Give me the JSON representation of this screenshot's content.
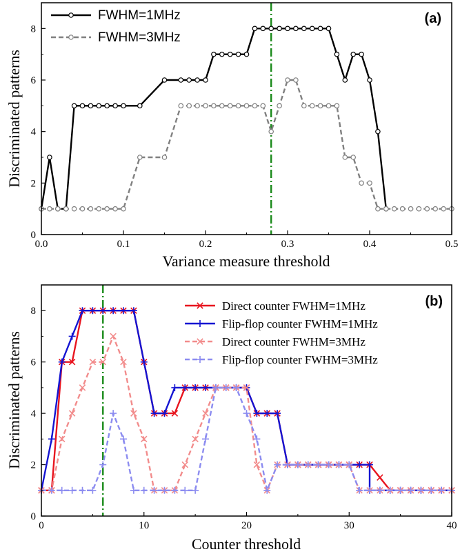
{
  "chart_data": [
    {
      "type": "line",
      "panel_label": "(a)",
      "xlabel": "Variance measure threshold",
      "ylabel": "Discriminated patterns",
      "xlim": [
        0,
        0.5
      ],
      "ylim": [
        0,
        9
      ],
      "xticks": [
        0,
        0.1,
        0.2,
        0.3,
        0.4,
        0.5
      ],
      "xtick_labels": [
        "0.0",
        "0.1",
        "0.2",
        "0.3",
        "0.4",
        "0.5"
      ],
      "yticks": [
        0,
        2,
        4,
        6,
        8
      ],
      "ytick_labels": [
        "0",
        "2",
        "4",
        "6",
        "8"
      ],
      "legend_position": "top-left",
      "vline": {
        "x": 0.28,
        "color": "#1a8a1a",
        "style": "dash-dot"
      },
      "series": [
        {
          "name": "FWHM=1MHz",
          "color": "#000000",
          "dashed": false,
          "marker": "open-circle",
          "x": [
            0,
            0.01,
            0.02,
            0.03,
            0.04,
            0.05,
            0.06,
            0.07,
            0.08,
            0.09,
            0.1,
            0.12,
            0.15,
            0.17,
            0.18,
            0.19,
            0.2,
            0.21,
            0.22,
            0.23,
            0.24,
            0.25,
            0.26,
            0.27,
            0.28,
            0.29,
            0.3,
            0.31,
            0.32,
            0.33,
            0.34,
            0.35,
            0.36,
            0.37,
            0.38,
            0.39,
            0.4,
            0.41,
            0.42
          ],
          "y": [
            1,
            3,
            1,
            1,
            5,
            5,
            5,
            5,
            5,
            5,
            5,
            5,
            6,
            6,
            6,
            6,
            6,
            7,
            7,
            7,
            7,
            7,
            8,
            8,
            8,
            8,
            8,
            8,
            8,
            8,
            8,
            8,
            7,
            6,
            7,
            7,
            6,
            4,
            1
          ]
        },
        {
          "name": "FWHM=3MHz",
          "color": "#808080",
          "dashed": true,
          "marker": "open-circle",
          "x": [
            0,
            0.01,
            0.02,
            0.03,
            0.04,
            0.05,
            0.06,
            0.07,
            0.08,
            0.09,
            0.1,
            0.12,
            0.15,
            0.17,
            0.18,
            0.19,
            0.2,
            0.21,
            0.22,
            0.23,
            0.24,
            0.25,
            0.26,
            0.27,
            0.28,
            0.29,
            0.3,
            0.31,
            0.32,
            0.33,
            0.34,
            0.35,
            0.36,
            0.37,
            0.38,
            0.39,
            0.4,
            0.41,
            0.42,
            0.43,
            0.44,
            0.45,
            0.46,
            0.47,
            0.48,
            0.49,
            0.5
          ],
          "y": [
            1,
            1,
            1,
            1,
            1,
            1,
            1,
            1,
            1,
            1,
            1,
            3,
            3,
            5,
            5,
            5,
            5,
            5,
            5,
            5,
            5,
            5,
            5,
            5,
            4,
            5,
            6,
            6,
            5,
            5,
            5,
            5,
            5,
            3,
            3,
            2,
            2,
            1,
            1,
            1,
            1,
            1,
            1,
            1,
            1,
            1,
            1
          ]
        }
      ]
    },
    {
      "type": "line",
      "panel_label": "(b)",
      "xlabel": "Counter threshold",
      "ylabel": "Discriminated patterns",
      "xlim": [
        0,
        40
      ],
      "ylim": [
        0,
        9
      ],
      "xticks": [
        0,
        10,
        20,
        30,
        40
      ],
      "xtick_labels": [
        "0",
        "10",
        "20",
        "30",
        "40"
      ],
      "yticks": [
        0,
        2,
        4,
        6,
        8
      ],
      "ytick_labels": [
        "0",
        "2",
        "4",
        "6",
        "8"
      ],
      "legend_position": "top-right",
      "vline": {
        "x": 6,
        "color": "#1a8a1a",
        "style": "dash-dot"
      },
      "series": [
        {
          "name": "Direct counter FWHM=1MHz",
          "color": "#e8141e",
          "dashed": false,
          "marker": "x",
          "x": [
            0,
            1,
            2,
            3,
            4,
            5,
            6,
            7,
            8,
            9,
            10,
            11,
            12,
            13,
            14,
            15,
            16,
            17,
            18,
            19,
            20,
            21,
            22,
            23,
            24,
            25,
            26,
            27,
            28,
            29,
            30,
            31,
            32,
            33,
            34,
            35,
            36,
            37,
            38,
            39,
            40
          ],
          "y": [
            1,
            1,
            6,
            6,
            8,
            8,
            8,
            8,
            8,
            8,
            6,
            4,
            4,
            4,
            5,
            5,
            5,
            5,
            5,
            5,
            5,
            4,
            4,
            4,
            2,
            2,
            2,
            2,
            2,
            2,
            2,
            2,
            2,
            1.5,
            1,
            1,
            1,
            1,
            1,
            1,
            1
          ]
        },
        {
          "name": "Flip-flop counter FWHM=1MHz",
          "color": "#1414d2",
          "dashed": false,
          "marker": "plus",
          "x": [
            0,
            1,
            2,
            3,
            4,
            5,
            6,
            7,
            8,
            9,
            10,
            11,
            12,
            13,
            14,
            15,
            16,
            17,
            18,
            19,
            20,
            21,
            22,
            23,
            24,
            25,
            26,
            27,
            28,
            29,
            30,
            31,
            32,
            32,
            33,
            34,
            35,
            36,
            37,
            38,
            39,
            40
          ],
          "y": [
            1,
            3,
            6,
            7,
            8,
            8,
            8,
            8,
            8,
            8,
            6,
            4,
            4,
            5,
            5,
            5,
            5,
            5,
            5,
            5,
            5,
            4,
            4,
            4,
            2,
            2,
            2,
            2,
            2,
            2,
            2,
            2,
            2,
            1,
            1,
            1,
            1,
            1,
            1,
            1,
            1,
            1
          ]
        },
        {
          "name": "Direct counter FWHM=3MHz",
          "color": "#f28c8c",
          "dashed": true,
          "marker": "x",
          "x": [
            0,
            1,
            2,
            3,
            4,
            5,
            6,
            7,
            8,
            9,
            10,
            11,
            12,
            13,
            14,
            15,
            16,
            17,
            18,
            19,
            20,
            21,
            22,
            23,
            24,
            25,
            26,
            27,
            28,
            29,
            30,
            31,
            32,
            33,
            34,
            35,
            36,
            37,
            38,
            39,
            40
          ],
          "y": [
            1,
            1,
            3,
            4,
            5,
            6,
            6,
            7,
            6,
            4,
            3,
            1,
            1,
            1,
            2,
            3,
            4,
            5,
            5,
            5,
            5,
            2,
            1,
            2,
            2,
            2,
            2,
            2,
            2,
            2,
            2,
            1,
            1,
            1,
            1,
            1,
            1,
            1,
            1,
            1,
            1
          ]
        },
        {
          "name": "Flip-flop counter FWHM=3MHz",
          "color": "#8c8cf0",
          "dashed": true,
          "marker": "plus",
          "x": [
            0,
            1,
            2,
            3,
            4,
            5,
            6,
            7,
            8,
            9,
            10,
            11,
            12,
            13,
            14,
            15,
            16,
            17,
            18,
            19,
            20,
            21,
            22,
            23,
            24,
            25,
            26,
            27,
            28,
            29,
            30,
            31,
            32,
            33,
            34,
            35,
            36,
            37,
            38,
            39,
            40
          ],
          "y": [
            1,
            1,
            1,
            1,
            1,
            1,
            2,
            4,
            3,
            1,
            1,
            1,
            1,
            1,
            1,
            1,
            3,
            5,
            5,
            5,
            4,
            3,
            1,
            2,
            2,
            2,
            2,
            2,
            2,
            2,
            2,
            1,
            1,
            1,
            1,
            1,
            1,
            1,
            1,
            1,
            1
          ]
        }
      ]
    }
  ]
}
